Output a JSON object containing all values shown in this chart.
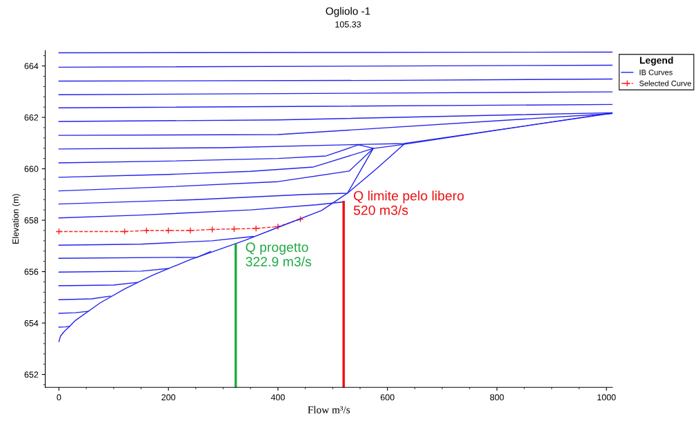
{
  "chart_data": {
    "type": "line",
    "title": "Ogliolo -1",
    "subtitle": "105.33",
    "xlabel": "Flow m³/s",
    "ylabel": "Elevation (m)",
    "legend_title": "Legend",
    "legend": "top right",
    "grid": false,
    "marker": "none",
    "line_style": "solid",
    "xlim": [
      -25,
      1011
    ],
    "xticks": [
      0,
      200,
      400,
      600,
      800,
      1000
    ],
    "ylim": [
      651.5,
      664.6
    ],
    "yticks": [
      652,
      654,
      656,
      658,
      660,
      662,
      664
    ],
    "series": [
      {
        "name": "IB Curves",
        "color": "#2222ee",
        "x": [
          0,
          1011
        ],
        "values": [
          664.51,
          664.54
        ]
      },
      {
        "color": "#2222ee",
        "x": [
          0,
          1011
        ],
        "values": [
          663.95,
          664.03
        ]
      },
      {
        "color": "#2222ee",
        "x": [
          0,
          620,
          1011
        ],
        "values": [
          663.41,
          663.44,
          663.49
        ]
      },
      {
        "color": "#2222ee",
        "x": [
          0,
          1011
        ],
        "values": [
          662.88,
          662.99
        ]
      },
      {
        "color": "#2222ee",
        "x": [
          0,
          1011
        ],
        "values": [
          662.37,
          662.5
        ]
      },
      {
        "color": "#2222ee",
        "x": [
          0,
          400,
          1011
        ],
        "values": [
          661.84,
          661.9,
          662.18
        ]
      },
      {
        "color": "#2222ee",
        "x": [
          0,
          400,
          1011
        ],
        "values": [
          661.3,
          661.33,
          662.15
        ]
      },
      {
        "color": "#2222ee",
        "x": [
          0,
          300,
          560,
          630,
          1011
        ],
        "values": [
          660.77,
          660.82,
          660.95,
          660.98,
          662.16
        ]
      },
      {
        "color": "#2222ee",
        "x": [
          0,
          200,
          400,
          488,
          547,
          574
        ],
        "values": [
          660.23,
          660.3,
          660.4,
          660.5,
          660.93,
          660.8
        ]
      },
      {
        "color": "#2222ee",
        "x": [
          0,
          200,
          350,
          465,
          574
        ],
        "values": [
          659.67,
          659.78,
          659.9,
          660.07,
          660.79
        ]
      },
      {
        "color": "#2222ee",
        "x": [
          0,
          200,
          400,
          530,
          574
        ],
        "values": [
          659.14,
          659.3,
          659.5,
          659.91,
          660.79
        ]
      },
      {
        "color": "#2222ee",
        "x": [
          0,
          250,
          450,
          527,
          574,
          630
        ],
        "values": [
          658.63,
          658.8,
          659.0,
          659.05,
          660.79,
          660.95
        ]
      },
      {
        "color": "#2222ee",
        "x": [
          0,
          150,
          350,
          470,
          520
        ],
        "values": [
          658.09,
          658.2,
          658.4,
          658.6,
          658.71
        ]
      },
      {
        "name": "Selected Curve",
        "color": "#ff2020",
        "line_style": "dashed",
        "marker": "cross",
        "x": [
          0,
          120,
          160,
          200,
          240,
          280,
          320,
          360,
          400,
          441
        ],
        "values": [
          657.56,
          657.56,
          657.6,
          657.6,
          657.6,
          657.64,
          657.66,
          657.68,
          657.75,
          658.04
        ]
      },
      {
        "color": "#2222ee",
        "x": [
          0,
          150,
          280,
          355
        ],
        "values": [
          657.03,
          657.07,
          657.2,
          657.37
        ]
      },
      {
        "color": "#2222ee",
        "x": [
          0,
          253,
          277
        ],
        "values": [
          656.52,
          656.56,
          656.78
        ]
      },
      {
        "color": "#2222ee",
        "x": [
          0,
          150,
          200
        ],
        "values": [
          655.98,
          656.02,
          656.12
        ]
      },
      {
        "color": "#2222ee",
        "x": [
          0,
          100,
          143
        ],
        "values": [
          655.45,
          655.48,
          655.58
        ]
      },
      {
        "color": "#2222ee",
        "x": [
          0,
          60,
          94
        ],
        "values": [
          654.91,
          654.94,
          655.05
        ]
      },
      {
        "color": "#2222ee",
        "x": [
          0,
          30,
          54
        ],
        "values": [
          654.38,
          654.4,
          654.46
        ]
      },
      {
        "color": "#2222ee",
        "x": [
          0,
          3,
          10,
          20,
          30,
          75,
          120,
          170,
          240,
          300,
          340,
          400,
          480,
          527,
          580,
          630,
          800,
          1011
        ],
        "values": [
          653.28,
          653.5,
          653.68,
          653.88,
          654.1,
          654.78,
          655.33,
          655.85,
          656.47,
          656.92,
          657.22,
          657.72,
          658.38,
          659.05,
          660.0,
          660.95,
          661.5,
          662.18
        ]
      },
      {
        "color": "#2222ee",
        "x": [
          0,
          12,
          20
        ],
        "values": [
          653.84,
          653.85,
          653.88
        ]
      },
      {
        "color": "#22aa44",
        "x": [
          322.9,
          322.9
        ],
        "values": [
          651.5,
          657.05
        ]
      },
      {
        "color": "#ee1111",
        "x": [
          520,
          520
        ],
        "values": [
          651.5,
          658.71
        ]
      }
    ],
    "annotations": [
      {
        "text": "Q progetto\n322.9 m3/s",
        "x": 322.9,
        "y": 656.1
      },
      {
        "text": "Q limite pelo libero\n520 m3/s",
        "x": 520,
        "y": 658.1
      }
    ]
  }
}
